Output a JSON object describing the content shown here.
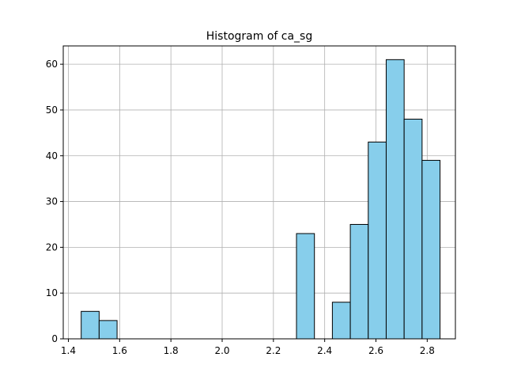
{
  "chart_data": {
    "type": "bar",
    "title": "Histogram of ca_sg",
    "xlabel": "",
    "ylabel": "",
    "xlim": [
      1.38,
      2.91
    ],
    "ylim": [
      0,
      64
    ],
    "x_ticks": [
      1.4,
      1.6,
      1.8,
      2.0,
      2.2,
      2.4,
      2.6,
      2.8
    ],
    "x_tick_labels": [
      "1.4",
      "1.6",
      "1.8",
      "2.0",
      "2.2",
      "2.4",
      "2.6",
      "2.8"
    ],
    "y_ticks": [
      0,
      10,
      20,
      30,
      40,
      50,
      60
    ],
    "y_tick_labels": [
      "0",
      "10",
      "20",
      "30",
      "40",
      "50",
      "60"
    ],
    "grid": true,
    "bar_color": "#87ceeb",
    "edge_color": "#000000",
    "bins": [
      {
        "x0": 1.45,
        "x1": 1.52,
        "count": 6
      },
      {
        "x0": 1.52,
        "x1": 1.59,
        "count": 4
      },
      {
        "x0": 1.59,
        "x1": 1.66,
        "count": 0
      },
      {
        "x0": 1.66,
        "x1": 1.73,
        "count": 0
      },
      {
        "x0": 1.73,
        "x1": 1.8,
        "count": 0
      },
      {
        "x0": 1.8,
        "x1": 1.87,
        "count": 0
      },
      {
        "x0": 1.87,
        "x1": 1.94,
        "count": 0
      },
      {
        "x0": 1.94,
        "x1": 2.01,
        "count": 0
      },
      {
        "x0": 2.01,
        "x1": 2.08,
        "count": 0
      },
      {
        "x0": 2.08,
        "x1": 2.15,
        "count": 0
      },
      {
        "x0": 2.15,
        "x1": 2.22,
        "count": 0
      },
      {
        "x0": 2.22,
        "x1": 2.29,
        "count": 0
      },
      {
        "x0": 2.29,
        "x1": 2.36,
        "count": 23
      },
      {
        "x0": 2.36,
        "x1": 2.43,
        "count": 0
      },
      {
        "x0": 2.43,
        "x1": 2.5,
        "count": 8
      },
      {
        "x0": 2.5,
        "x1": 2.57,
        "count": 25
      },
      {
        "x0": 2.57,
        "x1": 2.64,
        "count": 43
      },
      {
        "x0": 2.64,
        "x1": 2.71,
        "count": 61
      },
      {
        "x0": 2.71,
        "x1": 2.78,
        "count": 48
      },
      {
        "x0": 2.78,
        "x1": 2.85,
        "count": 39
      }
    ]
  }
}
